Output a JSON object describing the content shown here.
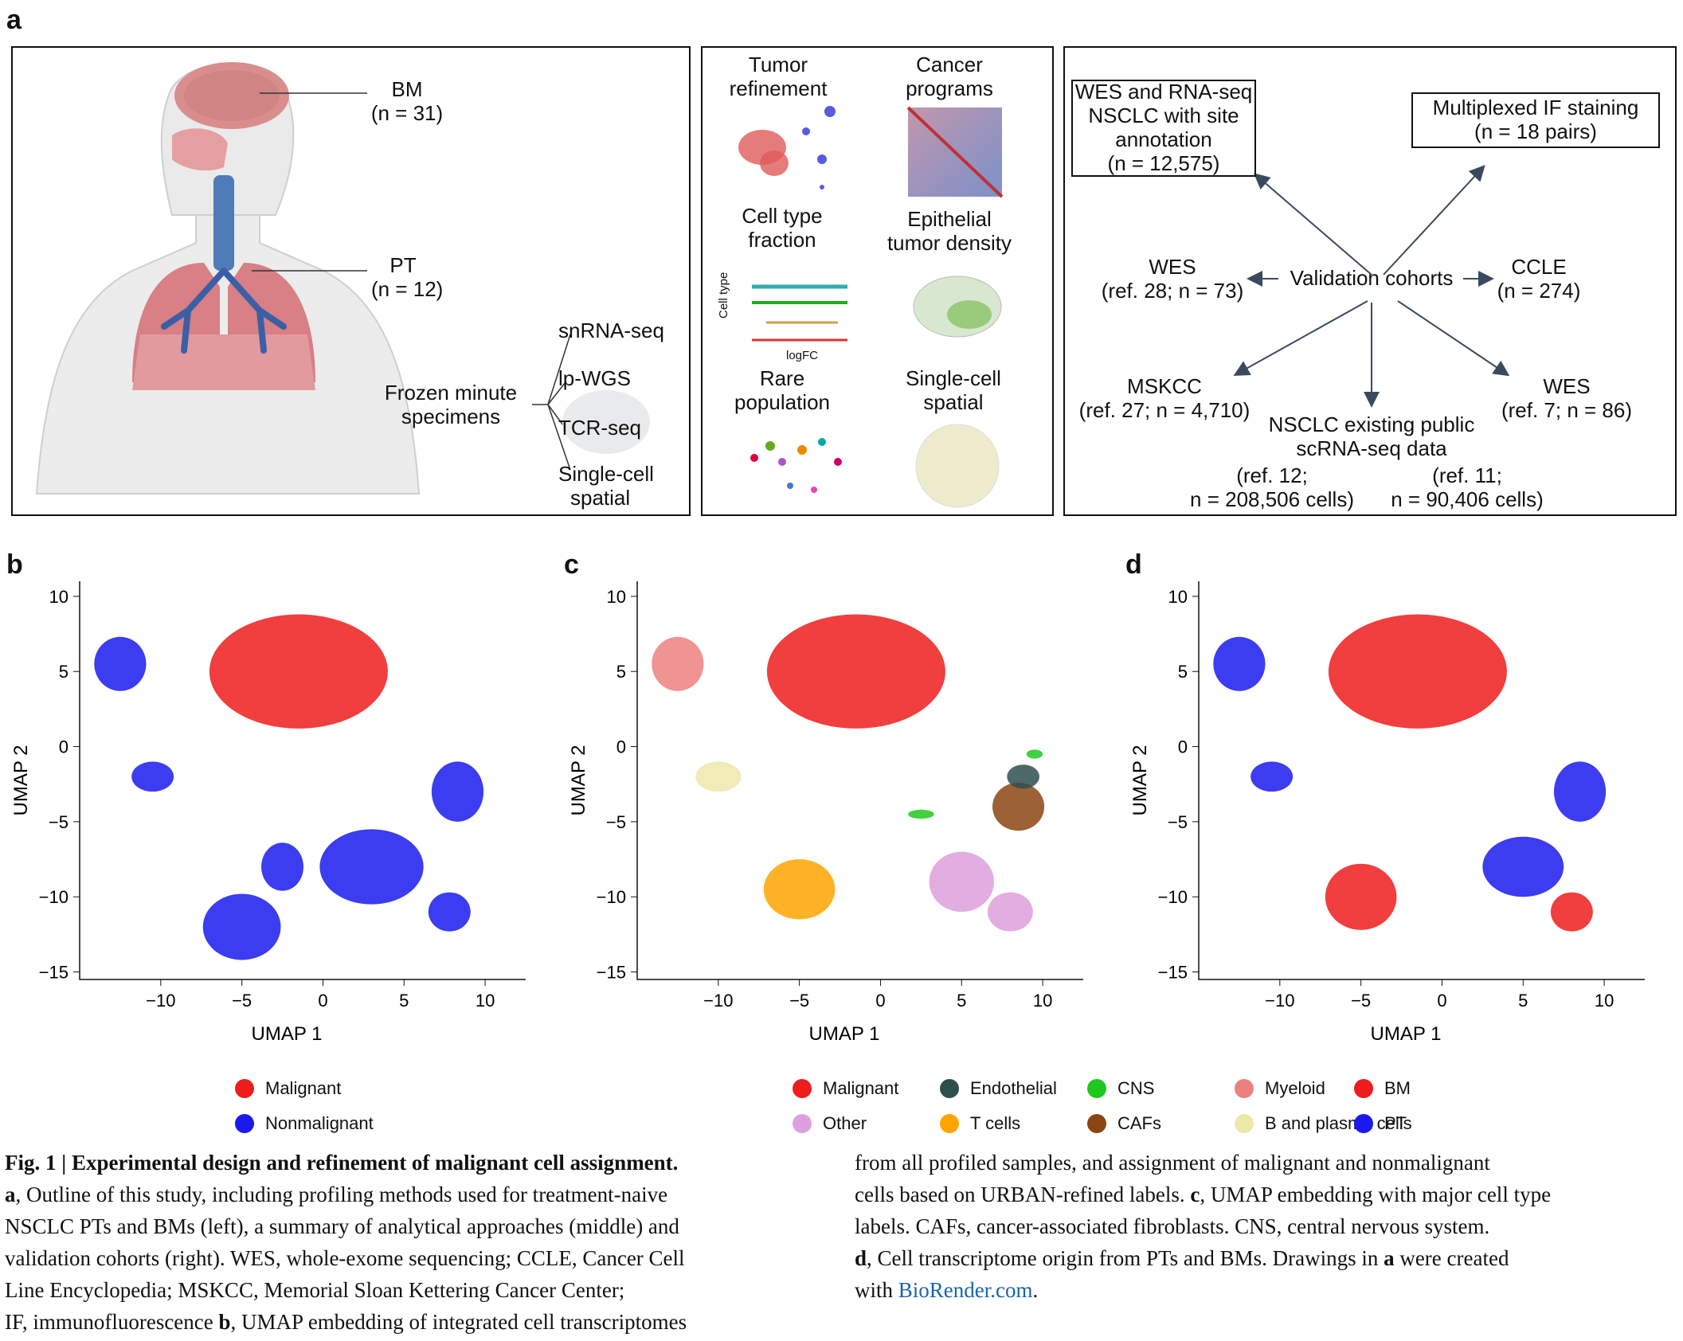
{
  "panel_a": {
    "letter": "a",
    "anatomy": {
      "bm_label": "BM",
      "bm_n": "(n = 31)",
      "pt_label": "PT",
      "pt_n": "(n = 12)",
      "specimen_label_1": "Frozen minute",
      "specimen_label_2": "specimens",
      "methods": [
        "snRNA-seq",
        "lp-WGS",
        "TCR-seq",
        "Single-cell",
        "spatial"
      ]
    },
    "approaches": {
      "tumor_refinement": [
        "Tumor",
        "refinement"
      ],
      "cancer_programs": [
        "Cancer",
        "programs"
      ],
      "cell_type_fraction": [
        "Cell type",
        "fraction"
      ],
      "cell_type_axis": "Cell type",
      "logfc_axis": "logFC",
      "epithelial_density": [
        "Epithelial",
        "tumor density"
      ],
      "rare_population": [
        "Rare",
        "population"
      ],
      "single_cell_spatial": [
        "Single-cell",
        "spatial"
      ]
    },
    "validation": {
      "center": "Validation cohorts",
      "wes_rna": [
        "WES and RNA-seq",
        "NSCLC with site",
        "annotation",
        "(n = 12,575)"
      ],
      "multiplex": [
        "Multiplexed IF staining",
        "(n = 18 pairs)"
      ],
      "wes_left": [
        "WES",
        "(ref. 28; n = 73)"
      ],
      "ccle": [
        "CCLE",
        "(n = 274)"
      ],
      "mskcc": [
        "MSKCC",
        "(ref. 27; n = 4,710)"
      ],
      "wes_right": [
        "WES",
        "(ref. 7; n = 86)"
      ],
      "nsclc_public": [
        "NSCLC existing public",
        "scRNA-seq data"
      ],
      "ref12": [
        "(ref. 12;",
        "n = 208,506 cells)"
      ],
      "ref11": [
        "(ref. 11;",
        "n = 90,406 cells)"
      ]
    }
  },
  "panels_umap": [
    {
      "letter": "b",
      "xlabel": "UMAP 1",
      "ylabel": "UMAP 2",
      "legend": [
        {
          "name": "Malignant",
          "color": "#ee1c1c"
        },
        {
          "name": "Nonmalignant",
          "color": "#1a1aee"
        }
      ]
    },
    {
      "letter": "c",
      "xlabel": "UMAP 1",
      "ylabel": "UMAP 2",
      "legend": [
        {
          "name": "Malignant",
          "color": "#ee1c1c"
        },
        {
          "name": "Endothelial",
          "color": "#2f4f4f"
        },
        {
          "name": "CNS",
          "color": "#1ec81e"
        },
        {
          "name": "Myeloid",
          "color": "#ec8080"
        },
        {
          "name": "Other",
          "color": "#dda0dd"
        },
        {
          "name": "T cells",
          "color": "#ffa500"
        },
        {
          "name": "CAFs",
          "color": "#8b4513"
        },
        {
          "name": "B and plasma cells",
          "color": "#eee8aa"
        }
      ]
    },
    {
      "letter": "d",
      "xlabel": "UMAP 1",
      "ylabel": "UMAP 2",
      "legend": [
        {
          "name": "BM",
          "color": "#ee1c1c"
        },
        {
          "name": "PT",
          "color": "#1a1aee"
        }
      ]
    }
  ],
  "chart_data": [
    {
      "type": "scatter",
      "xlabel": "UMAP 1",
      "ylabel": "UMAP 2",
      "xlim": [
        -15,
        12.5
      ],
      "ylim": [
        -15.5,
        11
      ],
      "xticks": [
        -10,
        -5,
        0,
        5,
        10
      ],
      "yticks": [
        10,
        5,
        0,
        -5,
        -10,
        -15
      ],
      "series": [
        {
          "name": "Malignant"
        },
        {
          "name": "Nonmalignant"
        }
      ]
    },
    {
      "type": "scatter",
      "xlabel": "UMAP 1",
      "ylabel": "UMAP 2",
      "xlim": [
        -15,
        12.5
      ],
      "ylim": [
        -15.5,
        11
      ],
      "xticks": [
        -10,
        -5,
        0,
        5,
        10
      ],
      "yticks": [
        10,
        5,
        0,
        -5,
        -10,
        -15
      ],
      "series": [
        {
          "name": "Malignant"
        },
        {
          "name": "Endothelial"
        },
        {
          "name": "CNS"
        },
        {
          "name": "Myeloid"
        },
        {
          "name": "Other"
        },
        {
          "name": "T cells"
        },
        {
          "name": "CAFs"
        },
        {
          "name": "B and plasma cells"
        }
      ]
    },
    {
      "type": "scatter",
      "xlabel": "UMAP 1",
      "ylabel": "UMAP 2",
      "xlim": [
        -15,
        12.5
      ],
      "ylim": [
        -15.5,
        11
      ],
      "xticks": [
        -10,
        -5,
        0,
        5,
        10
      ],
      "yticks": [
        10,
        5,
        0,
        -5,
        -10,
        -15
      ],
      "series": [
        {
          "name": "BM"
        },
        {
          "name": "PT"
        }
      ]
    }
  ],
  "caption": {
    "fig_label": "Fig. 1 | Experimental design and refinement of malignant cell assignment.",
    "left_lines": [
      [
        "a",
        ", Outline of this study, including profiling methods used for treatment-naive"
      ],
      [
        "",
        "NSCLC PTs and BMs (left), a summary of analytical approaches (middle) and"
      ],
      [
        "",
        "validation cohorts (right). WES, whole-exome sequencing; CCLE, Cancer Cell"
      ],
      [
        "",
        "Line Encyclopedia; MSKCC, Memorial Sloan Kettering Cancer Center;"
      ],
      [
        "",
        "IF, immunofluorescence "
      ]
    ],
    "left_last_b": "b",
    "left_last_tail": ", UMAP embedding of integrated cell transcriptomes",
    "right_1": "from all profiled samples, and assignment of malignant and nonmalignant",
    "right_2a": "cells based on URBAN-refined labels. ",
    "right_2b": "c",
    "right_2c": ", UMAP embedding with major cell type",
    "right_3": "labels. CAFs, cancer-associated fibroblasts. CNS, central nervous system.",
    "right_4a": "d",
    "right_4b": ", Cell transcriptome origin from PTs and BMs. Drawings in ",
    "right_4c": "a",
    "right_4d": " were created",
    "right_5a": "with ",
    "right_5b": "BioRender.com",
    "right_5c": "."
  }
}
